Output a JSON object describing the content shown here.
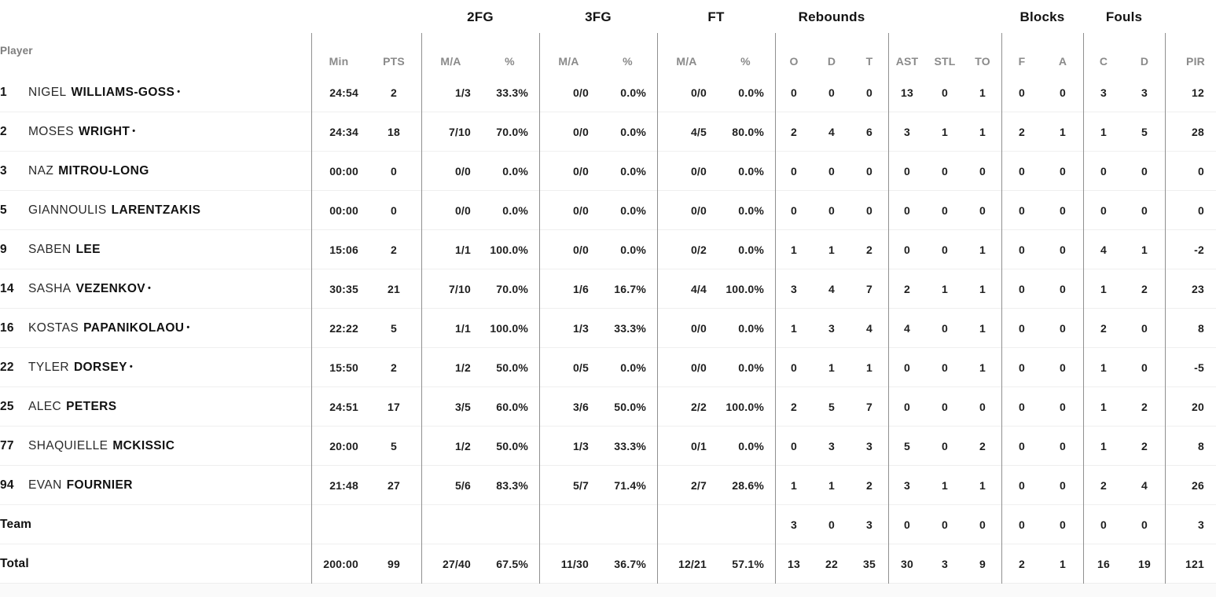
{
  "header": {
    "player_label": "Player",
    "groups": {
      "fg2": "2FG",
      "fg3": "3FG",
      "ft": "FT",
      "rebounds": "Rebounds",
      "blocks": "Blocks",
      "fouls": "Fouls"
    },
    "cols": {
      "min": "Min",
      "pts": "PTS",
      "ma": "M/A",
      "pct": "%",
      "reb_o": "O",
      "reb_d": "D",
      "reb_t": "T",
      "ast": "AST",
      "stl": "STL",
      "to": "TO",
      "blk_f": "F",
      "blk_a": "A",
      "foul_c": "C",
      "foul_d": "D",
      "pir": "PIR"
    }
  },
  "starter_marker": "•",
  "rows": [
    {
      "num": "1",
      "first": "NIGEL",
      "last": "WILLIAMS-GOSS",
      "starter": true,
      "min": "24:54",
      "pts": "2",
      "fg2_ma": "1/3",
      "fg2_pct": "33.3%",
      "fg3_ma": "0/0",
      "fg3_pct": "0.0%",
      "ft_ma": "0/0",
      "ft_pct": "0.0%",
      "reb_o": "0",
      "reb_d": "0",
      "reb_t": "0",
      "ast": "13",
      "stl": "0",
      "to": "1",
      "blk_f": "0",
      "blk_a": "0",
      "foul_c": "3",
      "foul_d": "3",
      "pir": "12"
    },
    {
      "num": "2",
      "first": "MOSES",
      "last": "WRIGHT",
      "starter": true,
      "min": "24:34",
      "pts": "18",
      "fg2_ma": "7/10",
      "fg2_pct": "70.0%",
      "fg3_ma": "0/0",
      "fg3_pct": "0.0%",
      "ft_ma": "4/5",
      "ft_pct": "80.0%",
      "reb_o": "2",
      "reb_d": "4",
      "reb_t": "6",
      "ast": "3",
      "stl": "1",
      "to": "1",
      "blk_f": "2",
      "blk_a": "1",
      "foul_c": "1",
      "foul_d": "5",
      "pir": "28"
    },
    {
      "num": "3",
      "first": "NAZ",
      "last": "MITROU-LONG",
      "starter": false,
      "min": "00:00",
      "pts": "0",
      "fg2_ma": "0/0",
      "fg2_pct": "0.0%",
      "fg3_ma": "0/0",
      "fg3_pct": "0.0%",
      "ft_ma": "0/0",
      "ft_pct": "0.0%",
      "reb_o": "0",
      "reb_d": "0",
      "reb_t": "0",
      "ast": "0",
      "stl": "0",
      "to": "0",
      "blk_f": "0",
      "blk_a": "0",
      "foul_c": "0",
      "foul_d": "0",
      "pir": "0"
    },
    {
      "num": "5",
      "first": "GIANNOULIS",
      "last": "LARENTZAKIS",
      "starter": false,
      "min": "00:00",
      "pts": "0",
      "fg2_ma": "0/0",
      "fg2_pct": "0.0%",
      "fg3_ma": "0/0",
      "fg3_pct": "0.0%",
      "ft_ma": "0/0",
      "ft_pct": "0.0%",
      "reb_o": "0",
      "reb_d": "0",
      "reb_t": "0",
      "ast": "0",
      "stl": "0",
      "to": "0",
      "blk_f": "0",
      "blk_a": "0",
      "foul_c": "0",
      "foul_d": "0",
      "pir": "0"
    },
    {
      "num": "9",
      "first": "SABEN",
      "last": "LEE",
      "starter": false,
      "min": "15:06",
      "pts": "2",
      "fg2_ma": "1/1",
      "fg2_pct": "100.0%",
      "fg3_ma": "0/0",
      "fg3_pct": "0.0%",
      "ft_ma": "0/2",
      "ft_pct": "0.0%",
      "reb_o": "1",
      "reb_d": "1",
      "reb_t": "2",
      "ast": "0",
      "stl": "0",
      "to": "1",
      "blk_f": "0",
      "blk_a": "0",
      "foul_c": "4",
      "foul_d": "1",
      "pir": "-2"
    },
    {
      "num": "14",
      "first": "SASHA",
      "last": "VEZENKOV",
      "starter": true,
      "min": "30:35",
      "pts": "21",
      "fg2_ma": "7/10",
      "fg2_pct": "70.0%",
      "fg3_ma": "1/6",
      "fg3_pct": "16.7%",
      "ft_ma": "4/4",
      "ft_pct": "100.0%",
      "reb_o": "3",
      "reb_d": "4",
      "reb_t": "7",
      "ast": "2",
      "stl": "1",
      "to": "1",
      "blk_f": "0",
      "blk_a": "0",
      "foul_c": "1",
      "foul_d": "2",
      "pir": "23"
    },
    {
      "num": "16",
      "first": "KOSTAS",
      "last": "PAPANIKOLAOU",
      "starter": true,
      "min": "22:22",
      "pts": "5",
      "fg2_ma": "1/1",
      "fg2_pct": "100.0%",
      "fg3_ma": "1/3",
      "fg3_pct": "33.3%",
      "ft_ma": "0/0",
      "ft_pct": "0.0%",
      "reb_o": "1",
      "reb_d": "3",
      "reb_t": "4",
      "ast": "4",
      "stl": "0",
      "to": "1",
      "blk_f": "0",
      "blk_a": "0",
      "foul_c": "2",
      "foul_d": "0",
      "pir": "8"
    },
    {
      "num": "22",
      "first": "TYLER",
      "last": "DORSEY",
      "starter": true,
      "min": "15:50",
      "pts": "2",
      "fg2_ma": "1/2",
      "fg2_pct": "50.0%",
      "fg3_ma": "0/5",
      "fg3_pct": "0.0%",
      "ft_ma": "0/0",
      "ft_pct": "0.0%",
      "reb_o": "0",
      "reb_d": "1",
      "reb_t": "1",
      "ast": "0",
      "stl": "0",
      "to": "1",
      "blk_f": "0",
      "blk_a": "0",
      "foul_c": "1",
      "foul_d": "0",
      "pir": "-5"
    },
    {
      "num": "25",
      "first": "ALEC",
      "last": "PETERS",
      "starter": false,
      "min": "24:51",
      "pts": "17",
      "fg2_ma": "3/5",
      "fg2_pct": "60.0%",
      "fg3_ma": "3/6",
      "fg3_pct": "50.0%",
      "ft_ma": "2/2",
      "ft_pct": "100.0%",
      "reb_o": "2",
      "reb_d": "5",
      "reb_t": "7",
      "ast": "0",
      "stl": "0",
      "to": "0",
      "blk_f": "0",
      "blk_a": "0",
      "foul_c": "1",
      "foul_d": "2",
      "pir": "20"
    },
    {
      "num": "77",
      "first": "SHAQUIELLE",
      "last": "MCKISSIC",
      "starter": false,
      "min": "20:00",
      "pts": "5",
      "fg2_ma": "1/2",
      "fg2_pct": "50.0%",
      "fg3_ma": "1/3",
      "fg3_pct": "33.3%",
      "ft_ma": "0/1",
      "ft_pct": "0.0%",
      "reb_o": "0",
      "reb_d": "3",
      "reb_t": "3",
      "ast": "5",
      "stl": "0",
      "to": "2",
      "blk_f": "0",
      "blk_a": "0",
      "foul_c": "1",
      "foul_d": "2",
      "pir": "8"
    },
    {
      "num": "94",
      "first": "EVAN",
      "last": "FOURNIER",
      "starter": false,
      "min": "21:48",
      "pts": "27",
      "fg2_ma": "5/6",
      "fg2_pct": "83.3%",
      "fg3_ma": "5/7",
      "fg3_pct": "71.4%",
      "ft_ma": "2/7",
      "ft_pct": "28.6%",
      "reb_o": "1",
      "reb_d": "1",
      "reb_t": "2",
      "ast": "3",
      "stl": "1",
      "to": "1",
      "blk_f": "0",
      "blk_a": "0",
      "foul_c": "2",
      "foul_d": "4",
      "pir": "26"
    },
    {
      "label": "Team",
      "min": "",
      "pts": "",
      "fg2_ma": "",
      "fg2_pct": "",
      "fg3_ma": "",
      "fg3_pct": "",
      "ft_ma": "",
      "ft_pct": "",
      "reb_o": "3",
      "reb_d": "0",
      "reb_t": "3",
      "ast": "0",
      "stl": "0",
      "to": "0",
      "blk_f": "0",
      "blk_a": "0",
      "foul_c": "0",
      "foul_d": "0",
      "pir": "3"
    },
    {
      "label": "Total",
      "min": "200:00",
      "pts": "99",
      "fg2_ma": "27/40",
      "fg2_pct": "67.5%",
      "fg3_ma": "11/30",
      "fg3_pct": "36.7%",
      "ft_ma": "12/21",
      "ft_pct": "57.1%",
      "reb_o": "13",
      "reb_d": "22",
      "reb_t": "35",
      "ast": "30",
      "stl": "3",
      "to": "9",
      "blk_f": "2",
      "blk_a": "1",
      "foul_c": "16",
      "foul_d": "19",
      "pir": "121"
    }
  ],
  "colors": {
    "text": "#1e1e1e",
    "muted_header": "#8a8a8a",
    "group_divider": "#909090",
    "row_separator": "#efefef",
    "below_table_bg": "#fafafa"
  }
}
